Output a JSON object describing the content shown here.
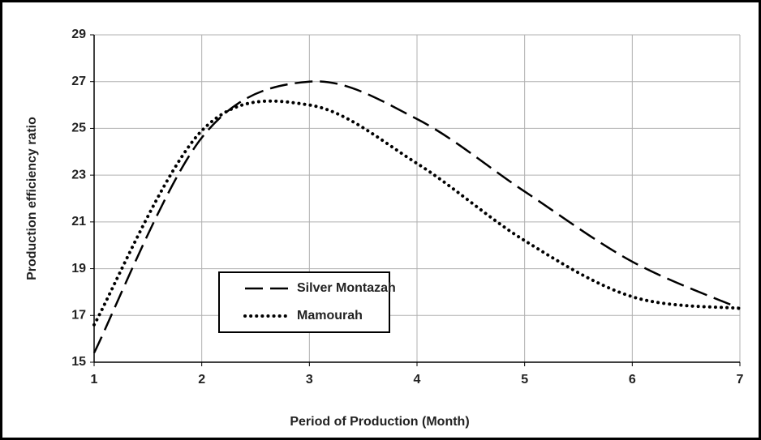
{
  "chart_data": {
    "type": "line",
    "x_label": "Period of Production (Month)",
    "y_label": "Production efficiency ratio",
    "x": [
      1,
      2,
      3,
      4,
      5,
      6,
      7
    ],
    "series": [
      {
        "name": "Silver Montazah",
        "color": "#000000",
        "dash": "dashed",
        "values": [
          15.4,
          24.6,
          27.0,
          25.4,
          22.3,
          19.3,
          17.3
        ]
      },
      {
        "name": "Mamourah",
        "color": "#000000",
        "dash": "dotted",
        "values": [
          16.6,
          24.9,
          26.0,
          23.5,
          20.2,
          17.8,
          17.3
        ]
      }
    ],
    "xlim": [
      1,
      7
    ],
    "xticks": [
      1,
      2,
      3,
      4,
      5,
      6,
      7
    ],
    "ylim": [
      15,
      29
    ],
    "yticks": [
      15,
      17,
      19,
      21,
      23,
      25,
      27,
      29
    ],
    "grid": true,
    "legend": "lower-left"
  }
}
